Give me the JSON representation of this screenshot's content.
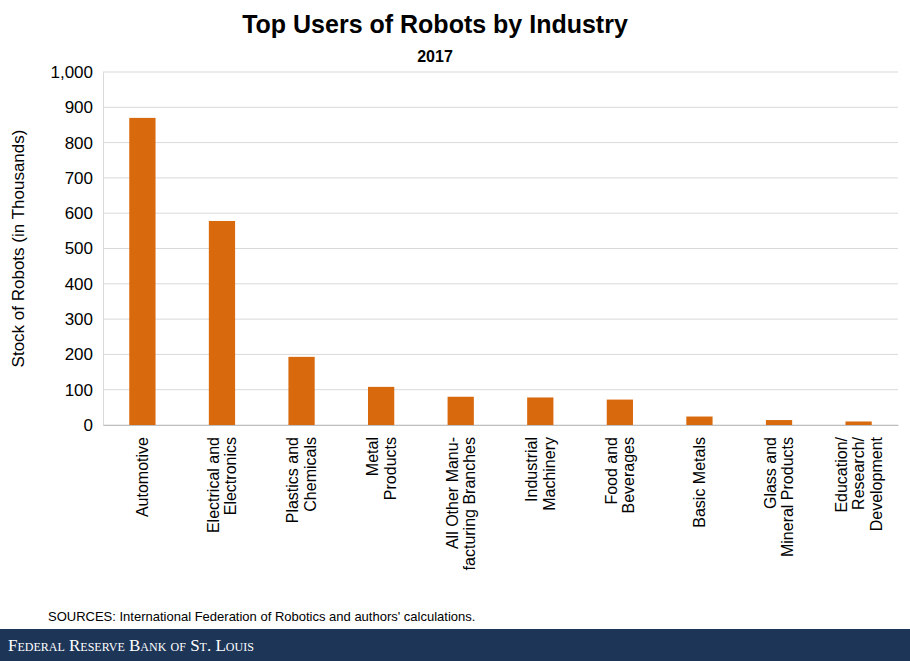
{
  "chart_data": {
    "type": "bar",
    "title": "Top Users of Robots by Industry",
    "subtitle": "2017",
    "y_label": "Stock of Robots (in Thousands)",
    "categories": [
      "Automotive",
      "Electrical and\nElectronics",
      "Plastics and\nChemicals",
      "Metal\nProducts",
      "All Other Manu-\nfacturing Branches",
      "Industrial\nMachinery",
      "Food and\nBeverages",
      "Basic Metals",
      "Glass and\nMineral Products",
      "Education/\nResearch/\nDevelopment"
    ],
    "values": [
      870,
      578,
      193,
      108,
      80,
      78,
      72,
      24,
      14,
      10
    ],
    "color": "#d8690c",
    "ylim": [
      0,
      1000
    ],
    "yticks": [
      0,
      100,
      200,
      300,
      400,
      500,
      600,
      700,
      800,
      900,
      {
        "value": 1000,
        "label": "1,000"
      }
    ],
    "grid": true,
    "source": "SOURCES: International Federation of Robotics and authors' calculations.",
    "footer": "Federal Reserve Bank of St. Louis"
  }
}
